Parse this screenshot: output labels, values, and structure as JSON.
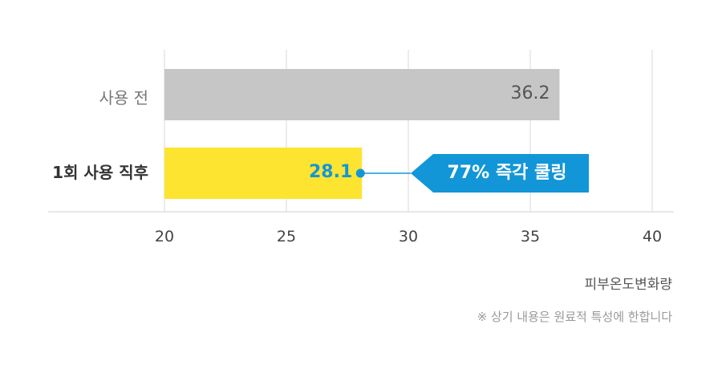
{
  "chart_data": {
    "type": "bar",
    "orientation": "horizontal",
    "categories": [
      "사용 전",
      "1회 사용 직후"
    ],
    "values": [
      36.2,
      28.1
    ],
    "value_labels": [
      "36.2",
      "28.1"
    ],
    "bar_colors": [
      "#c6c6c6",
      "#fde430"
    ],
    "xlim": [
      20,
      40
    ],
    "xticks": [
      20,
      25,
      30,
      35,
      40
    ],
    "xlabel": "피부온도변화량",
    "grid": "vertical",
    "annotation": {
      "text": "77% 즉각 쿨링",
      "target_category": "1회 사용 직후",
      "color": "#1296d8"
    }
  },
  "footnote": "※ 상기 내용은 원료적 특성에 한합니다"
}
